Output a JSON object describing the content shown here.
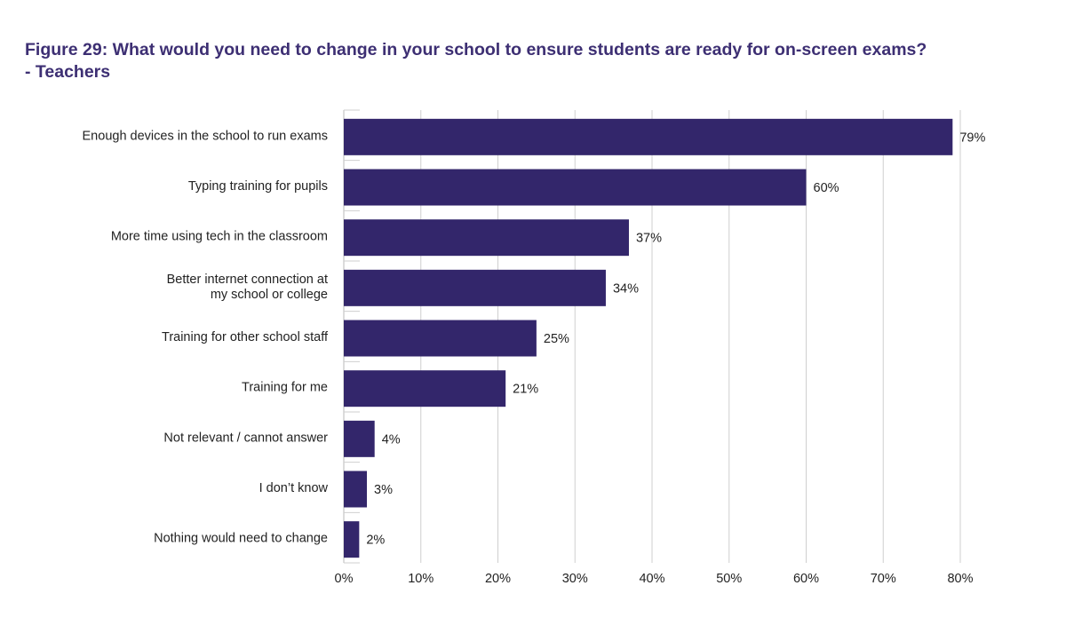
{
  "figure": {
    "title_line1": "Figure 29: What would you need to change in your school to ensure students are ready for on-screen exams?",
    "title_line2": "- Teachers"
  },
  "colors": {
    "bar": "#33266b",
    "title": "#3d2f73"
  },
  "chart_data": {
    "type": "bar",
    "orientation": "horizontal",
    "categories": [
      [
        "Enough devices in the school to run exams"
      ],
      [
        "Typing training for pupils"
      ],
      [
        "More time using tech in the classroom"
      ],
      [
        "Better internet connection at",
        "my school or college"
      ],
      [
        "Training for other school staff"
      ],
      [
        "Training for me"
      ],
      [
        "Not relevant / cannot answer"
      ],
      [
        "I don’t know"
      ],
      [
        "Nothing would need to change"
      ]
    ],
    "values": [
      79,
      60,
      37,
      34,
      25,
      21,
      4,
      3,
      2
    ],
    "value_labels": [
      "79%",
      "60%",
      "37%",
      "34%",
      "25%",
      "21%",
      "4%",
      "3%",
      "2%"
    ],
    "xlim": [
      0,
      80
    ],
    "xticks": [
      0,
      10,
      20,
      30,
      40,
      50,
      60,
      70,
      80
    ],
    "xtick_labels": [
      "0%",
      "10%",
      "20%",
      "30%",
      "40%",
      "50%",
      "60%",
      "70%",
      "80%"
    ],
    "grid": true,
    "legend": "none"
  }
}
